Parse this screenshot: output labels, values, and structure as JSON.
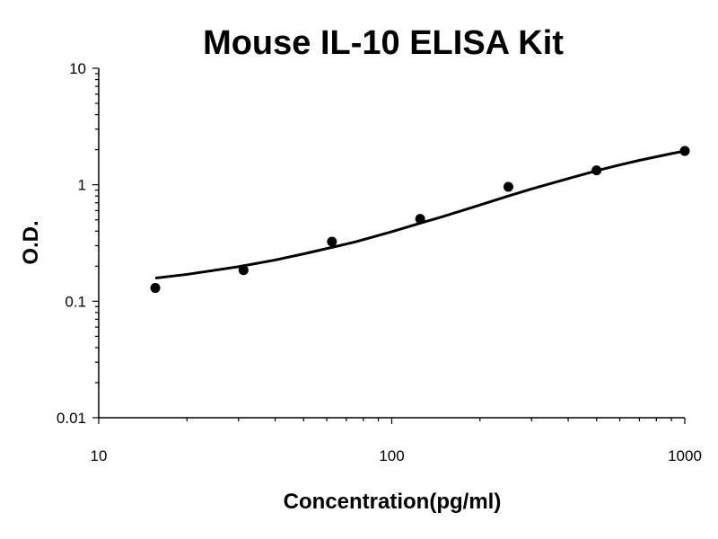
{
  "chart_data": {
    "type": "scatter",
    "title": "Mouse IL-10 ELISA Kit",
    "xlabel": "Concentration(pg/ml)",
    "ylabel": "O.D.",
    "x_scale": "log",
    "y_scale": "log",
    "xlim": [
      10,
      1000
    ],
    "ylim": [
      0.01,
      10
    ],
    "x_ticks": [
      10,
      100,
      1000
    ],
    "x_tick_labels": [
      "10",
      "100",
      "1000"
    ],
    "y_ticks": [
      0.01,
      0.1,
      1,
      10
    ],
    "y_tick_labels": [
      "0.01",
      "0.1",
      "1",
      "10"
    ],
    "grid": false,
    "legend": "none",
    "colors": {
      "points": "#000000",
      "curve": "#000000",
      "axes": "#000000"
    },
    "series": [
      {
        "x": [
          15.6,
          31.2,
          62.5,
          125,
          250,
          500,
          1000
        ],
        "y": [
          0.13,
          0.185,
          0.325,
          0.51,
          0.96,
          1.33,
          1.95
        ]
      }
    ],
    "fit_curve": {
      "x": [
        15.6,
        20,
        30,
        40,
        50,
        62.5,
        75,
        100,
        125,
        150,
        200,
        250,
        300,
        400,
        500,
        600,
        700,
        800,
        900,
        1000
      ],
      "y": [
        0.158,
        0.17,
        0.198,
        0.226,
        0.255,
        0.29,
        0.323,
        0.395,
        0.468,
        0.535,
        0.67,
        0.8,
        0.92,
        1.13,
        1.32,
        1.48,
        1.62,
        1.74,
        1.85,
        1.95
      ]
    }
  }
}
